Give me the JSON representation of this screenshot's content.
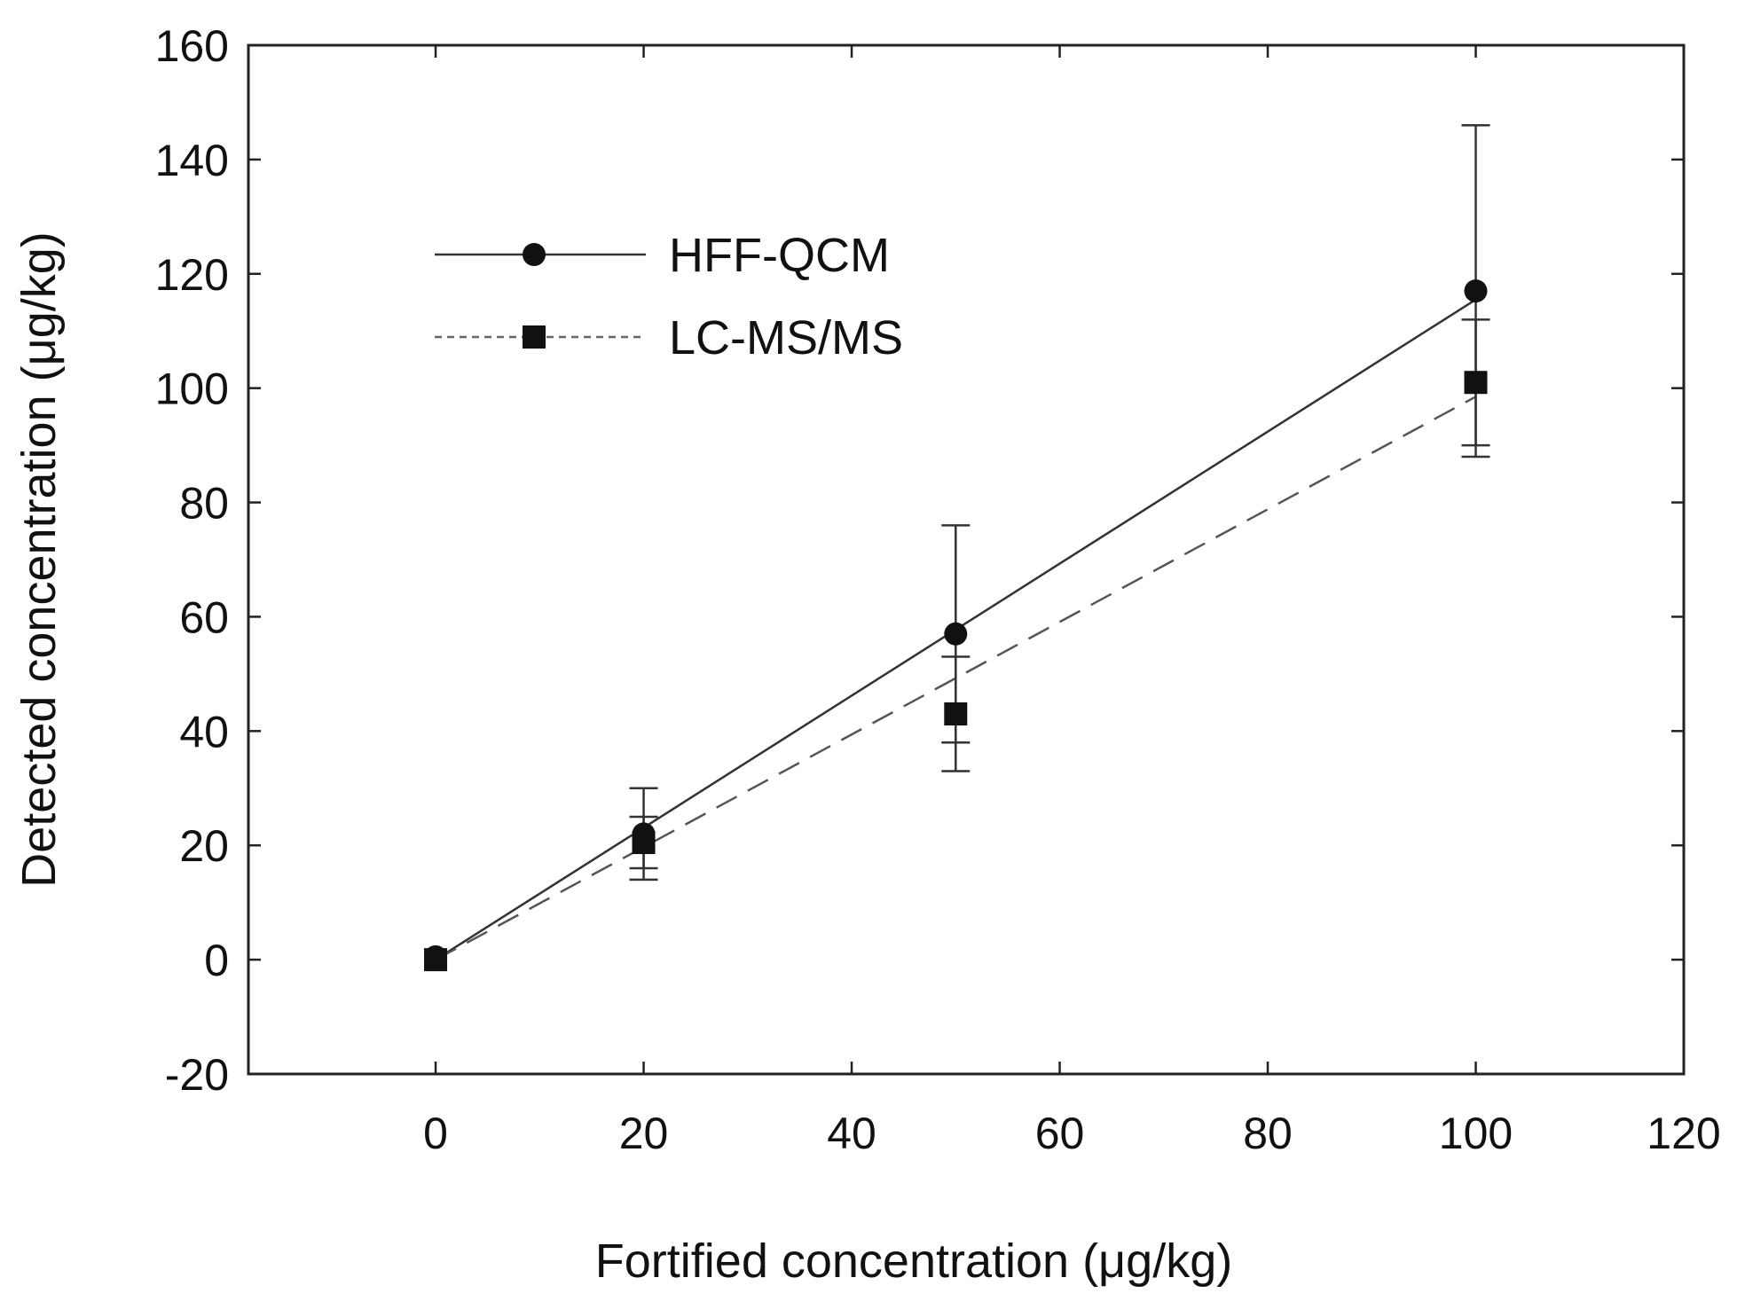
{
  "chart_data": {
    "type": "scatter",
    "title": "",
    "xlabel": "Fortified concentration (μg/kg)",
    "ylabel": "Detected concentration (μg/kg)",
    "xlim": [
      -18,
      120
    ],
    "ylim": [
      -20,
      160
    ],
    "xticks": [
      0,
      20,
      40,
      60,
      80,
      100,
      120
    ],
    "yticks": [
      -20,
      0,
      20,
      40,
      60,
      80,
      100,
      120,
      140,
      160
    ],
    "grid": false,
    "legend_position": "top-left",
    "series": [
      {
        "name": "HFF-QCM",
        "marker": "circle",
        "line_style": "solid",
        "color": "#111111",
        "points": [
          {
            "x": 0,
            "y": 0.5,
            "err": 0
          },
          {
            "x": 20,
            "y": 22,
            "err": 8
          },
          {
            "x": 50,
            "y": 57,
            "err": 19
          },
          {
            "x": 100,
            "y": 117,
            "err": 29
          }
        ],
        "fit": {
          "x": [
            0,
            100
          ],
          "y": [
            0,
            115.5
          ]
        }
      },
      {
        "name": "LC-MS/MS",
        "marker": "square",
        "line_style": "dashed",
        "color": "#111111",
        "points": [
          {
            "x": 0,
            "y": 0,
            "err": 0
          },
          {
            "x": 20,
            "y": 20.5,
            "err": 4.5
          },
          {
            "x": 50,
            "y": 43,
            "err": 10
          },
          {
            "x": 100,
            "y": 101,
            "err": 11
          }
        ],
        "fit": {
          "x": [
            0,
            100
          ],
          "y": [
            0,
            98.5
          ]
        }
      }
    ]
  }
}
